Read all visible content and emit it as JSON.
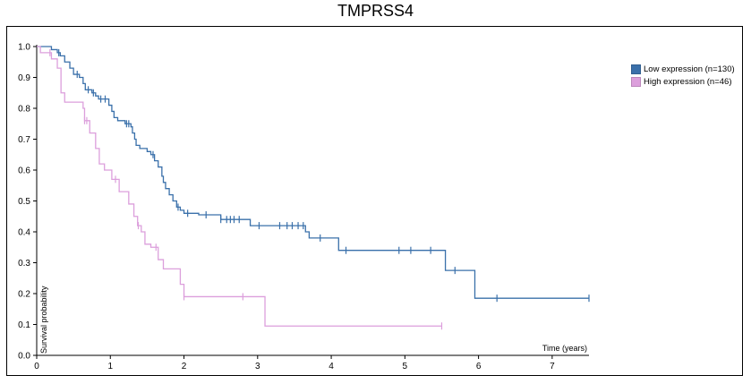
{
  "title": "TMPRSS4",
  "chart_data": {
    "type": "line",
    "step": true,
    "title": "TMPRSS4",
    "xlabel": "Time (years)",
    "ylabel": "Survival probability",
    "xlim": [
      0,
      7.5
    ],
    "ylim": [
      0,
      1.0
    ],
    "xticks": [
      "0",
      "1",
      "2",
      "3",
      "4",
      "5",
      "6",
      "7"
    ],
    "yticks": [
      "0.0",
      "0.1",
      "0.2",
      "0.3",
      "0.4",
      "0.5",
      "0.6",
      "0.7",
      "0.8",
      "0.9",
      "1.0"
    ],
    "grid": false,
    "legend_position": "top-right",
    "series": [
      {
        "name": "Low expression (n=130)",
        "color": "#3a70aa",
        "steps": [
          [
            0,
            1.0
          ],
          [
            0.2,
            0.99
          ],
          [
            0.28,
            0.98
          ],
          [
            0.32,
            0.97
          ],
          [
            0.38,
            0.95
          ],
          [
            0.45,
            0.93
          ],
          [
            0.5,
            0.91
          ],
          [
            0.58,
            0.9
          ],
          [
            0.63,
            0.88
          ],
          [
            0.66,
            0.86
          ],
          [
            0.75,
            0.85
          ],
          [
            0.8,
            0.84
          ],
          [
            0.84,
            0.83
          ],
          [
            0.98,
            0.81
          ],
          [
            1.02,
            0.79
          ],
          [
            1.05,
            0.77
          ],
          [
            1.1,
            0.76
          ],
          [
            1.2,
            0.75
          ],
          [
            1.28,
            0.74
          ],
          [
            1.3,
            0.72
          ],
          [
            1.33,
            0.7
          ],
          [
            1.35,
            0.68
          ],
          [
            1.4,
            0.67
          ],
          [
            1.5,
            0.66
          ],
          [
            1.55,
            0.65
          ],
          [
            1.6,
            0.63
          ],
          [
            1.65,
            0.61
          ],
          [
            1.7,
            0.58
          ],
          [
            1.72,
            0.56
          ],
          [
            1.75,
            0.54
          ],
          [
            1.8,
            0.52
          ],
          [
            1.85,
            0.5
          ],
          [
            1.9,
            0.48
          ],
          [
            1.95,
            0.47
          ],
          [
            2.0,
            0.46
          ],
          [
            2.2,
            0.455
          ],
          [
            2.5,
            0.44
          ],
          [
            2.9,
            0.42
          ],
          [
            3.65,
            0.4
          ],
          [
            3.7,
            0.38
          ],
          [
            4.1,
            0.34
          ],
          [
            5.55,
            0.275
          ],
          [
            5.95,
            0.185
          ],
          [
            7.5,
            0.185
          ]
        ],
        "censor": [
          0.3,
          0.55,
          0.7,
          0.77,
          0.87,
          0.93,
          1.22,
          1.25,
          1.58,
          1.92,
          2.05,
          2.3,
          2.5,
          2.58,
          2.63,
          2.68,
          2.75,
          3.02,
          3.3,
          3.4,
          3.47,
          3.55,
          3.62,
          3.85,
          4.2,
          4.92,
          5.08,
          5.35,
          5.68,
          6.25,
          7.5
        ]
      },
      {
        "name": "High expression (n=46)",
        "color": "#dc9fdc",
        "steps": [
          [
            0,
            1.0
          ],
          [
            0.05,
            0.98
          ],
          [
            0.2,
            0.96
          ],
          [
            0.28,
            0.93
          ],
          [
            0.33,
            0.85
          ],
          [
            0.38,
            0.82
          ],
          [
            0.63,
            0.8
          ],
          [
            0.65,
            0.76
          ],
          [
            0.72,
            0.72
          ],
          [
            0.8,
            0.67
          ],
          [
            0.85,
            0.62
          ],
          [
            0.92,
            0.6
          ],
          [
            1.02,
            0.57
          ],
          [
            1.12,
            0.53
          ],
          [
            1.25,
            0.49
          ],
          [
            1.32,
            0.45
          ],
          [
            1.37,
            0.42
          ],
          [
            1.42,
            0.4
          ],
          [
            1.47,
            0.36
          ],
          [
            1.55,
            0.35
          ],
          [
            1.65,
            0.31
          ],
          [
            1.72,
            0.28
          ],
          [
            1.95,
            0.23
          ],
          [
            2.0,
            0.19
          ],
          [
            3.1,
            0.095
          ],
          [
            5.5,
            0.095
          ]
        ],
        "censor": [
          0.18,
          0.65,
          0.68,
          1.07,
          1.38,
          1.62,
          2.0,
          2.8,
          5.5
        ]
      }
    ]
  }
}
